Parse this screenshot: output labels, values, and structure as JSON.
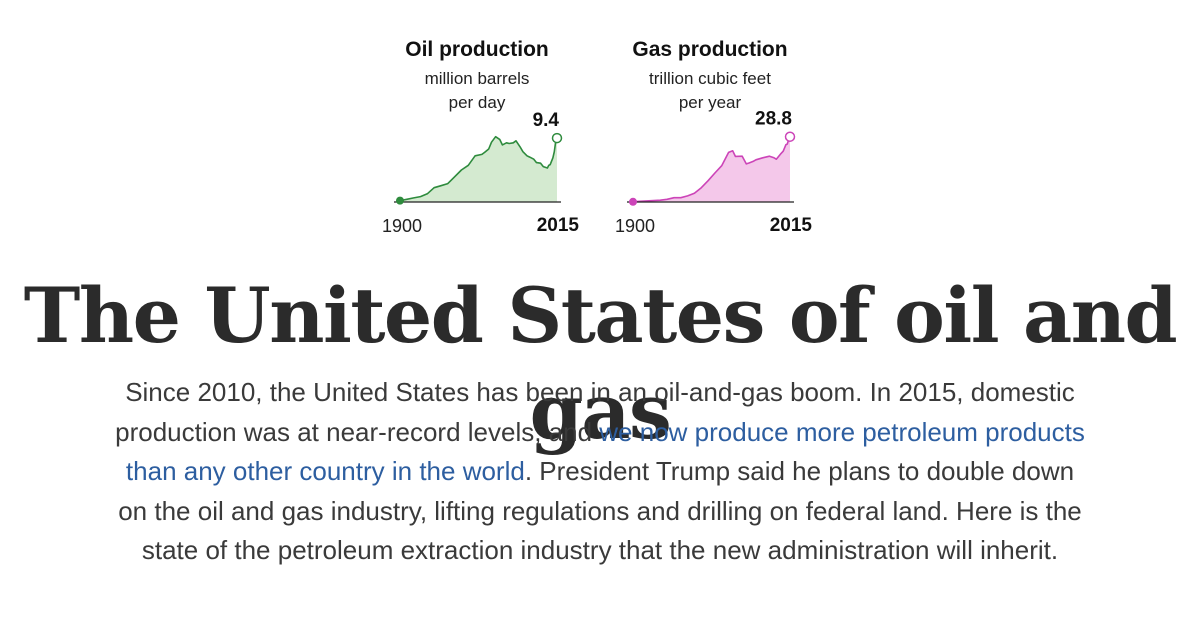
{
  "chart_data": [
    {
      "type": "area",
      "title": "Oil production",
      "subtitle_line1": "million barrels",
      "subtitle_line2": "per day",
      "x_start_label": "1900",
      "x_end_label": "2015",
      "end_value_label": "9.4",
      "xlim": [
        1900,
        2015
      ],
      "ylim": [
        0,
        10
      ],
      "x": [
        1900,
        1905,
        1910,
        1915,
        1920,
        1925,
        1930,
        1935,
        1940,
        1945,
        1950,
        1955,
        1960,
        1962,
        1965,
        1967,
        1970,
        1973,
        1975,
        1978,
        1980,
        1983,
        1985,
        1988,
        1990,
        1993,
        1995,
        1998,
        2000,
        2003,
        2005,
        2008,
        2009,
        2010,
        2012,
        2013,
        2014,
        2015
      ],
      "values": [
        0.2,
        0.4,
        0.6,
        0.8,
        1.2,
        2.1,
        2.4,
        2.7,
        3.7,
        4.7,
        5.4,
        6.8,
        7.0,
        7.3,
        7.8,
        8.8,
        9.6,
        9.2,
        8.4,
        8.7,
        8.6,
        8.7,
        9.0,
        8.1,
        7.4,
        6.8,
        6.6,
        6.3,
        5.8,
        5.7,
        5.2,
        5.0,
        5.4,
        5.5,
        6.5,
        7.4,
        8.8,
        9.4
      ],
      "color": "#2e8b3d",
      "fill_color": "#d4ead0"
    },
    {
      "type": "area",
      "title": "Gas production",
      "subtitle_line1": "trillion cubic feet",
      "subtitle_line2": "per year",
      "x_start_label": "1900",
      "x_end_label": "2015",
      "end_value_label": "28.8",
      "xlim": [
        1900,
        2015
      ],
      "ylim": [
        0,
        30
      ],
      "x": [
        1900,
        1905,
        1910,
        1915,
        1920,
        1925,
        1930,
        1935,
        1940,
        1945,
        1950,
        1955,
        1960,
        1965,
        1970,
        1973,
        1975,
        1980,
        1983,
        1985,
        1988,
        1990,
        1995,
        2000,
        2003,
        2005,
        2008,
        2010,
        2012,
        2013,
        2014,
        2015
      ],
      "values": [
        0.1,
        0.3,
        0.5,
        0.6,
        0.8,
        1.2,
        1.9,
        1.9,
        2.7,
        3.9,
        6.3,
        9.4,
        12.8,
        16.0,
        21.9,
        22.6,
        20.1,
        20.2,
        16.8,
        17.2,
        17.9,
        18.6,
        19.5,
        20.2,
        19.6,
        18.9,
        21.1,
        22.4,
        25.3,
        25.6,
        27.5,
        28.8
      ],
      "color": "#cc44b8",
      "fill_color": "#f4c8ea"
    }
  ],
  "headline": "The United States of oil and gas",
  "dek": {
    "part1": "Since 2010, the United States has been in an oil-and-gas boom. In 2015, domestic production was at near-record levels, and ",
    "link": "we now produce more petroleum products than any other country in the world",
    "part2": ". President Trump said he plans to double down on the oil and gas industry, lifting regulations and drilling on federal land. Here is the state of the petroleum extraction industry that the new administration will inherit."
  }
}
